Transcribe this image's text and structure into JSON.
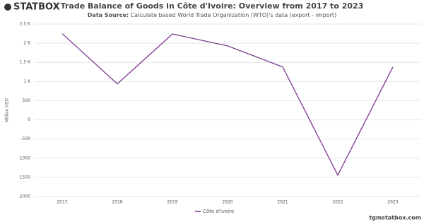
{
  "brand": "STATBOX",
  "footer": "tgmstatbox.com",
  "chart_data": {
    "type": "line",
    "title": "Trade Balance of Goods in Côte d'Ivoire: Overview from 2017 to 2023",
    "source_label": "Data Source:",
    "source": "Calculate based World Trade Organization (WTO)'s data (export - import)",
    "y_label": "Million USD",
    "categories": [
      "2017",
      "2018",
      "2019",
      "2020",
      "2021",
      "2022",
      "2023"
    ],
    "series": [
      {
        "name": "Côte d'Ivoire",
        "color": "#7b3a8e",
        "values": [
          2250,
          940,
          2240,
          1930,
          1380,
          -1440,
          1380
        ]
      }
    ],
    "ylim": [
      -2000,
      2500
    ],
    "yticks": [
      -2000,
      -1500,
      -1000,
      -500,
      0,
      500,
      {
        "value": 1000,
        "label": "1 K"
      },
      {
        "value": 1500,
        "label": "1.5 K"
      },
      {
        "value": 2000,
        "label": "2 K"
      },
      {
        "value": 2500,
        "label": "2.5 K"
      }
    ],
    "grid": true,
    "legend": "bottom"
  }
}
